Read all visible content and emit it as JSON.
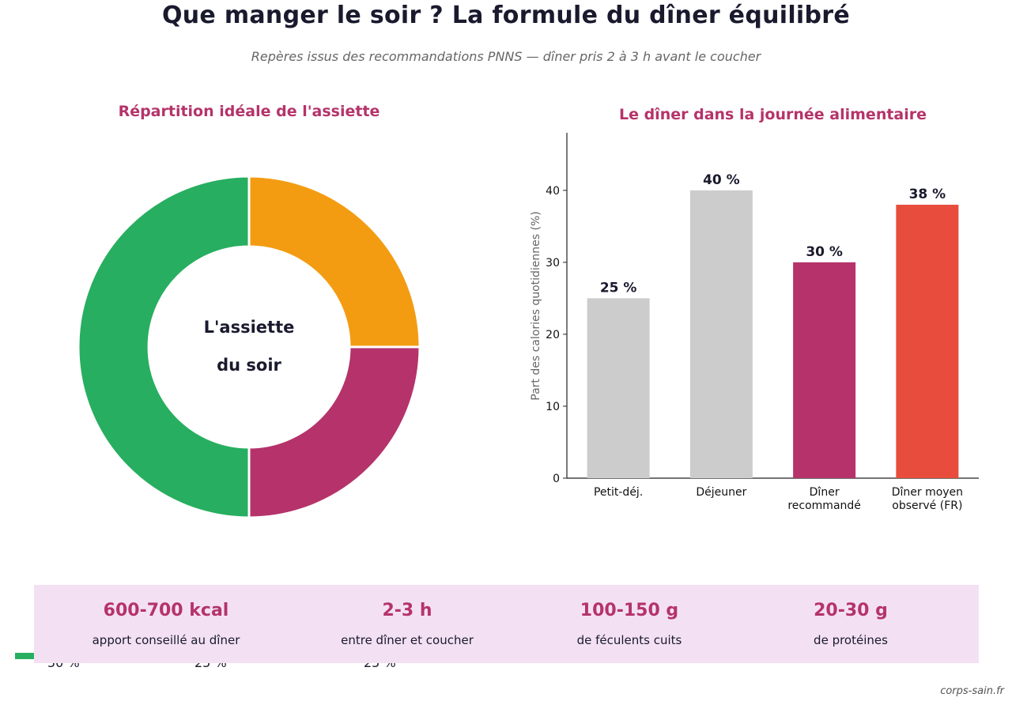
{
  "title": "Que manger le soir ? La formule du dîner équilibré",
  "subtitle": "Repères issus des recommandations PNNS — dîner pris 2 à 3 h avant le coucher",
  "chart_data": [
    {
      "type": "pie",
      "variant": "donut",
      "title": "Répartition idéale de l'assiette",
      "center_label": [
        "L'assiette",
        "du soir"
      ],
      "slices": [
        {
          "value": 25,
          "color": "#f39c12"
        },
        {
          "value": 25,
          "color": "#b5336a"
        },
        {
          "value": 50,
          "color": "#27ae60"
        }
      ],
      "start_angle": "top, clockwise",
      "legend_visible": [
        "50 %",
        "25 %",
        "25 %"
      ]
    },
    {
      "type": "bar",
      "title": "Le dîner dans la journée alimentaire",
      "ylabel": "Part des calories quotidiennes (%)",
      "categories": [
        [
          "Petit-déj."
        ],
        [
          "Déjeuner"
        ],
        [
          "Dîner",
          "recommandé"
        ],
        [
          "Dîner moyen",
          "observé (FR)"
        ]
      ],
      "values": [
        25,
        40,
        30,
        38
      ],
      "value_labels": [
        "25 %",
        "40 %",
        "30 %",
        "38 %"
      ],
      "colors": [
        "#cccccc",
        "#cccccc",
        "#b5336a",
        "#e74c3c"
      ],
      "ylim": [
        0,
        48
      ],
      "yticks": [
        "0",
        "10",
        "20",
        "30",
        "40"
      ],
      "grid": false
    }
  ],
  "stats": [
    {
      "value": "600-700 kcal",
      "label": "apport conseillé au dîner"
    },
    {
      "value": "2-3 h",
      "label": "entre dîner et coucher"
    },
    {
      "value": "100-150 g",
      "label": "de féculents cuits"
    },
    {
      "value": "20-30 g",
      "label": "de protéines"
    }
  ],
  "source": "corps-sain.fr"
}
